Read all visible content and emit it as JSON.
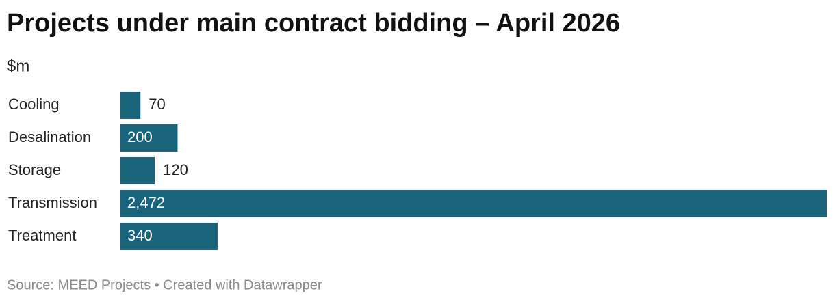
{
  "chart_data": {
    "type": "bar",
    "orientation": "horizontal",
    "title": "Projects under main contract bidding – April 2026",
    "subtitle": "$m",
    "categories": [
      "Cooling",
      "Desalination",
      "Storage",
      "Transmission",
      "Treatment"
    ],
    "values": [
      70,
      200,
      120,
      2472,
      340
    ],
    "value_labels": [
      "70",
      "200",
      "120",
      "2,472",
      "340"
    ],
    "color": "#19637b",
    "xlim": [
      0,
      2472
    ],
    "footer": "Source: MEED Projects • Created with Datawrapper"
  }
}
